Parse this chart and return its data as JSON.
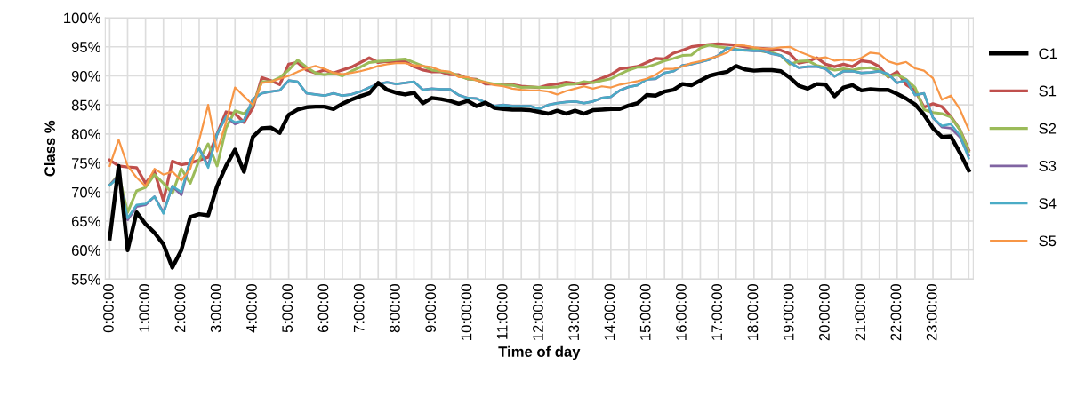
{
  "chart_data": {
    "type": "line",
    "xlabel": "Time of day",
    "ylabel": "Class %",
    "categories": [
      "0:00:00",
      null,
      null,
      null,
      "1:00:00",
      null,
      null,
      null,
      "2:00:00",
      null,
      null,
      null,
      "3:00:00",
      null,
      null,
      null,
      "4:00:00",
      null,
      null,
      null,
      "5:00:00",
      null,
      null,
      null,
      "6:00:00",
      null,
      null,
      null,
      "7:00:00",
      null,
      null,
      null,
      "8:00:00",
      null,
      null,
      null,
      "9:00:00",
      null,
      null,
      null,
      "10:00:00",
      null,
      null,
      null,
      "11:00:00",
      null,
      null,
      null,
      "12:00:00",
      null,
      null,
      null,
      "13:00:00",
      null,
      null,
      null,
      "14:00:00",
      null,
      null,
      null,
      "15:00:00",
      null,
      null,
      null,
      "16:00:00",
      null,
      null,
      null,
      "17:00:00",
      null,
      null,
      null,
      "18:00:00",
      null,
      null,
      null,
      "19:00:00",
      null,
      null,
      null,
      "20:00:00",
      null,
      null,
      null,
      "21:00:00",
      null,
      null,
      null,
      "22:00:00",
      null,
      null,
      null,
      "23:00:00",
      null,
      null,
      null,
      null
    ],
    "ylim": [
      55,
      100
    ],
    "yticks": [
      {
        "value": 55,
        "label": "55%"
      },
      {
        "value": 60,
        "label": "60%"
      },
      {
        "value": 65,
        "label": "65%"
      },
      {
        "value": 70,
        "label": "70%"
      },
      {
        "value": 75,
        "label": "75%"
      },
      {
        "value": 80,
        "label": "80%"
      },
      {
        "value": 85,
        "label": "85%"
      },
      {
        "value": 90,
        "label": "90%"
      },
      {
        "value": 95,
        "label": "95%"
      },
      {
        "value": 100,
        "label": "100%"
      }
    ],
    "grid": true,
    "legend": "right",
    "marker": "none",
    "line_style": "solid",
    "series": [
      {
        "name": "C1",
        "color": "#000000",
        "values": [
          62,
          74.5,
          60,
          66.5,
          64.5,
          63,
          61,
          57,
          60,
          65.7,
          66.2,
          66,
          71,
          74.5,
          77.3,
          73.5,
          79.5,
          81,
          81.1,
          80.2,
          83.3,
          84.2,
          84.6,
          84.7,
          84.7,
          84.3,
          85.2,
          85.9,
          86.5,
          87,
          88.8,
          87.6,
          87.1,
          86.8,
          87.1,
          85.3,
          86.2,
          86,
          85.7,
          85.2,
          85.7,
          84.8,
          85.4,
          84.5,
          84.3,
          84.2,
          84.2,
          84.1,
          83.8,
          83.5,
          84.0,
          83.5,
          84.0,
          83.5,
          84.1,
          84.2,
          84.3,
          84.3,
          84.9,
          85.3,
          86.7,
          86.6,
          87.3,
          87.6,
          88.6,
          88.4,
          89.2,
          90.0,
          90.4,
          90.7,
          91.7,
          91.1,
          90.9,
          91.0,
          91.0,
          90.8,
          89.7,
          88.3,
          87.8,
          88.6,
          88.5,
          86.5,
          88.0,
          88.4,
          87.5,
          87.7,
          87.6,
          87.6,
          86.9,
          86.1,
          85.1,
          83.3,
          81.0,
          79.5,
          79.6,
          76.8,
          73.7
        ]
      },
      {
        "name": "S1",
        "color": "#c0504d",
        "values": [
          75.5,
          74.5,
          74.3,
          74.2,
          71.5,
          73.5,
          68.5,
          75.3,
          74.7,
          75,
          75.5,
          76,
          80,
          83.8,
          83.5,
          82,
          84.5,
          89.7,
          89.2,
          88.5,
          92,
          92.3,
          91,
          90.5,
          91,
          90.5,
          91,
          91.5,
          92.3,
          93.1,
          92.3,
          92.5,
          92.4,
          92.5,
          91.6,
          91.0,
          90.7,
          90.7,
          90.2,
          90.2,
          89.5,
          89.4,
          88.6,
          88.6,
          88.4,
          88.5,
          88.2,
          88.1,
          88.0,
          88.4,
          88.6,
          88.9,
          88.7,
          88.6,
          89.0,
          89.6,
          90.2,
          91.2,
          91.4,
          91.6,
          92.3,
          93.0,
          92.9,
          93.9,
          94.4,
          95.0,
          95.2,
          95.4,
          95.5,
          95.4,
          95.3,
          95.0,
          94.8,
          94.7,
          94.6,
          94.4,
          93.8,
          92.2,
          92.5,
          93.1,
          92.0,
          91.6,
          92.0,
          91.6,
          92.6,
          92.4,
          91.6,
          89.8,
          90.7,
          88.5,
          87.5,
          84.6,
          85.2,
          84.7,
          83.0,
          80.8,
          77.2
        ]
      },
      {
        "name": "S2",
        "color": "#9bbb59",
        "values": [
          71.2,
          73,
          66.5,
          70.2,
          70.8,
          73,
          71.5,
          69.8,
          74,
          71.5,
          75.5,
          78.3,
          74.5,
          81,
          84,
          83.5,
          85,
          89,
          89,
          89.7,
          91,
          92.7,
          91.5,
          90.5,
          90.2,
          90.5,
          90.0,
          90.8,
          91.5,
          92.3,
          92.5,
          92.6,
          92.8,
          92.9,
          92.3,
          91.7,
          91.0,
          90.8,
          90.6,
          90.0,
          89.5,
          89.3,
          88.9,
          88.6,
          88.4,
          88.4,
          88.0,
          88.1,
          88.0,
          88.0,
          88.1,
          88.5,
          88.6,
          89.0,
          88.8,
          89.2,
          89.5,
          90.3,
          91.0,
          91.5,
          91.5,
          92.0,
          92.6,
          93.0,
          93.5,
          93.6,
          94.8,
          95.3,
          95.0,
          94.8,
          94.6,
          94.4,
          94.6,
          94.2,
          94.0,
          93.5,
          92.0,
          92.5,
          92.6,
          91.8,
          91.4,
          91.0,
          91.2,
          91.0,
          91.3,
          91.4,
          91.0,
          89.9,
          90.2,
          89.4,
          88.0,
          84.2,
          83.7,
          83.5,
          82.9,
          80.8,
          77.0
        ]
      },
      {
        "name": "S3",
        "color": "#8064a2",
        "values": [
          71.2,
          72.8,
          65.2,
          67.5,
          67.8,
          69.2,
          66.5,
          71,
          69.5,
          75.5,
          77.5,
          74.5,
          80,
          83,
          81.7,
          82.3,
          86,
          87,
          87.3,
          87.5,
          89.2,
          89,
          87,
          86.8,
          86.6,
          87,
          86.6,
          86.8,
          87.3,
          88,
          88.6,
          88.9,
          88.6,
          88.8,
          89,
          87.6,
          87.8,
          87.7,
          87.7,
          86.7,
          86.2,
          86.1,
          85.4,
          84.8,
          85.0,
          84.8,
          84.8,
          84.8,
          84.3,
          85.0,
          85.3,
          85.5,
          85.6,
          85.3,
          85.6,
          86.2,
          86.4,
          87.5,
          88.1,
          88.4,
          89.4,
          89.5,
          90.5,
          90.8,
          91.8,
          92.0,
          92.4,
          92.8,
          93.5,
          94.8,
          94.5,
          94.4,
          94.3,
          94.3,
          93.8,
          93.5,
          92.3,
          91.4,
          91.6,
          91.6,
          91.2,
          89.9,
          90.8,
          90.8,
          90.5,
          90.6,
          90.8,
          90.3,
          88.8,
          89.3,
          86.7,
          87.0,
          82.8,
          81.2,
          81.0,
          79.5,
          76.3
        ]
      },
      {
        "name": "S4",
        "color": "#4bacc6",
        "values": [
          71.2,
          72.5,
          65.5,
          67.8,
          68,
          69.2,
          66.3,
          71,
          70,
          75.5,
          77.5,
          74.2,
          80,
          83,
          82,
          82.3,
          86,
          87,
          87.3,
          87.5,
          89.2,
          89,
          87,
          86.8,
          86.6,
          87,
          86.6,
          86.8,
          87.3,
          88,
          88.6,
          88.9,
          88.6,
          88.8,
          89,
          87.6,
          87.8,
          87.7,
          87.7,
          86.7,
          86.2,
          86.1,
          85.4,
          84.8,
          85.0,
          84.8,
          84.8,
          84.8,
          84.3,
          85.0,
          85.3,
          85.5,
          85.6,
          85.3,
          85.6,
          86.2,
          86.4,
          87.5,
          88.1,
          88.4,
          89.4,
          89.5,
          90.5,
          90.8,
          91.8,
          92.0,
          92.4,
          92.8,
          93.5,
          94.8,
          94.5,
          94.4,
          94.3,
          94.3,
          93.8,
          93.5,
          92.3,
          91.4,
          91.6,
          91.6,
          91.2,
          89.9,
          90.8,
          90.8,
          90.5,
          90.6,
          90.8,
          90.3,
          88.8,
          89.3,
          86.7,
          87.0,
          82.8,
          81.4,
          81.7,
          79.8,
          75.8
        ]
      },
      {
        "name": "S5",
        "color": "#f79646",
        "values": [
          74.5,
          79,
          74.5,
          72.5,
          71,
          74,
          73,
          73.5,
          72,
          74,
          79,
          85,
          77,
          82,
          88,
          86.5,
          85,
          88.8,
          89,
          89.5,
          90,
          90.7,
          91.3,
          91.7,
          91.2,
          90.5,
          90.3,
          90.5,
          90.8,
          91.2,
          91.7,
          92,
          92.2,
          92.2,
          91.8,
          91.7,
          91.5,
          90.9,
          90.7,
          89.8,
          89.8,
          89.2,
          88.9,
          88.4,
          88.2,
          87.8,
          87.6,
          87.5,
          87.5,
          87.3,
          86.8,
          87.4,
          87.8,
          88.2,
          87.8,
          88.2,
          88.0,
          88.5,
          88.8,
          89.1,
          89.5,
          90.2,
          91.2,
          91.2,
          91.6,
          92.2,
          92.5,
          93.0,
          93.4,
          94.0,
          95.3,
          95.2,
          94.9,
          94.7,
          94.7,
          94.9,
          95.0,
          94.2,
          93.6,
          93.0,
          93.2,
          92.6,
          92.8,
          92.6,
          93.1,
          94.0,
          93.8,
          92.5,
          92.0,
          92.4,
          91.3,
          90.9,
          89.6,
          85.9,
          86.6,
          84.3,
          80.7
        ]
      }
    ]
  }
}
